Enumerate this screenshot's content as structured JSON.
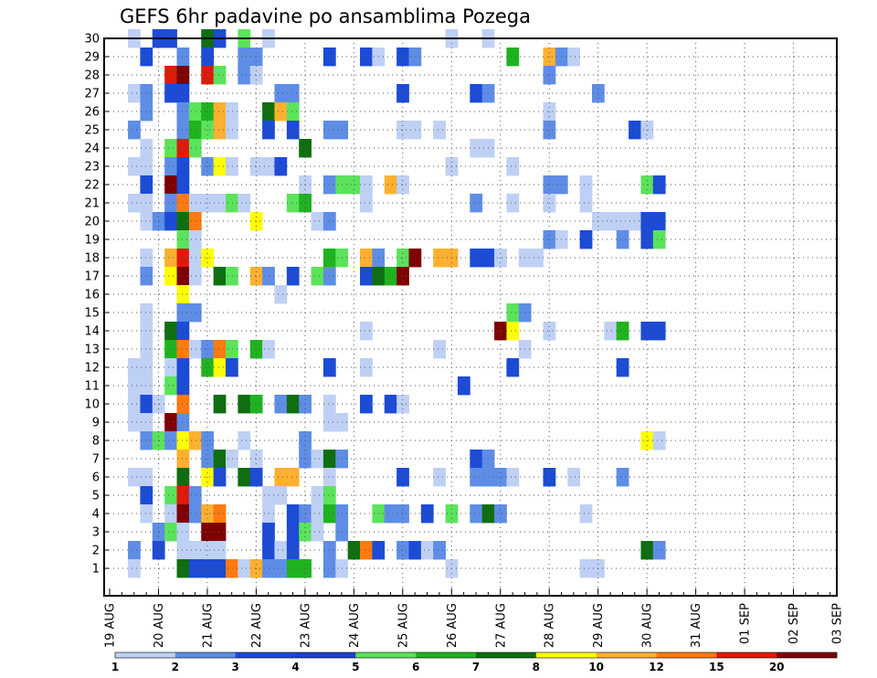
{
  "chart_data": {
    "type": "heatmap",
    "title": "GEFS 6hr padavine po ansamblima Pozega",
    "xlabel": "",
    "ylabel": "",
    "x_tick_labels": [
      "19 AUG",
      "20 AUG",
      "21 AUG",
      "22 AUG",
      "23 AUG",
      "24 AUG",
      "25 AUG",
      "26 AUG",
      "27 AUG",
      "28 AUG",
      "29 AUG",
      "30 AUG",
      "31 AUG",
      "01 SEP",
      "02 SEP",
      "03 SEP"
    ],
    "y_tick_labels": [
      "1",
      "2",
      "3",
      "4",
      "5",
      "6",
      "7",
      "8",
      "9",
      "10",
      "11",
      "12",
      "13",
      "14",
      "15",
      "16",
      "17",
      "18",
      "19",
      "20",
      "21",
      "22",
      "23",
      "24",
      "25",
      "26",
      "27",
      "28",
      "29",
      "30"
    ],
    "time_step_hours": 6,
    "grid": true,
    "colorbar": {
      "levels": [
        "1",
        "2",
        "3",
        "4",
        "5",
        "6",
        "7",
        "8",
        "10",
        "12",
        "15",
        "20"
      ],
      "colors": [
        "#bfd0f5",
        "#5e8de6",
        "#1c4bd6",
        "#1d40c8",
        "#5be35b",
        "#1fb31f",
        "#0f6e0f",
        "#ffff00",
        "#ffb030",
        "#ff7a10",
        "#e01a0a",
        "#7e0000"
      ]
    },
    "cells": [
      [
        30,
        2,
        1
      ],
      [
        30,
        4,
        3
      ],
      [
        30,
        5,
        3
      ],
      [
        30,
        8,
        7
      ],
      [
        30,
        9,
        3
      ],
      [
        30,
        11,
        5
      ],
      [
        30,
        13,
        1
      ],
      [
        30,
        28,
        1
      ],
      [
        30,
        31,
        1
      ],
      [
        29,
        3,
        3
      ],
      [
        29,
        6,
        2
      ],
      [
        29,
        8,
        3
      ],
      [
        29,
        11,
        2
      ],
      [
        29,
        12,
        2
      ],
      [
        29,
        18,
        3
      ],
      [
        29,
        21,
        3
      ],
      [
        29,
        22,
        1
      ],
      [
        29,
        24,
        3
      ],
      [
        29,
        25,
        2
      ],
      [
        29,
        33,
        6
      ],
      [
        29,
        36,
        10
      ],
      [
        29,
        37,
        2
      ],
      [
        29,
        38,
        1
      ],
      [
        28,
        5,
        15
      ],
      [
        28,
        6,
        20
      ],
      [
        28,
        8,
        15
      ],
      [
        28,
        9,
        5
      ],
      [
        28,
        11,
        2
      ],
      [
        28,
        12,
        1
      ],
      [
        28,
        36,
        2
      ],
      [
        27,
        2,
        1
      ],
      [
        27,
        3,
        2
      ],
      [
        27,
        5,
        3
      ],
      [
        27,
        6,
        3
      ],
      [
        27,
        14,
        2
      ],
      [
        27,
        15,
        2
      ],
      [
        27,
        24,
        3
      ],
      [
        27,
        30,
        3
      ],
      [
        27,
        31,
        2
      ],
      [
        27,
        40,
        2
      ],
      [
        26,
        3,
        2
      ],
      [
        26,
        6,
        2
      ],
      [
        26,
        7,
        5
      ],
      [
        26,
        8,
        6
      ],
      [
        26,
        9,
        10
      ],
      [
        26,
        10,
        1
      ],
      [
        26,
        13,
        7
      ],
      [
        26,
        14,
        10
      ],
      [
        26,
        15,
        5
      ],
      [
        26,
        36,
        1
      ],
      [
        25,
        2,
        2
      ],
      [
        25,
        6,
        2
      ],
      [
        25,
        7,
        6
      ],
      [
        25,
        8,
        5
      ],
      [
        25,
        9,
        10
      ],
      [
        25,
        10,
        1
      ],
      [
        25,
        13,
        3
      ],
      [
        25,
        15,
        3
      ],
      [
        25,
        18,
        2
      ],
      [
        25,
        19,
        2
      ],
      [
        25,
        24,
        1
      ],
      [
        25,
        25,
        1
      ],
      [
        25,
        27,
        1
      ],
      [
        25,
        36,
        2
      ],
      [
        25,
        43,
        3
      ],
      [
        25,
        44,
        1
      ],
      [
        24,
        3,
        1
      ],
      [
        24,
        5,
        5
      ],
      [
        24,
        6,
        15
      ],
      [
        24,
        7,
        5
      ],
      [
        24,
        16,
        7
      ],
      [
        24,
        30,
        1
      ],
      [
        24,
        31,
        1
      ],
      [
        23,
        2,
        1
      ],
      [
        23,
        3,
        1
      ],
      [
        23,
        5,
        2
      ],
      [
        23,
        6,
        3
      ],
      [
        23,
        8,
        2
      ],
      [
        23,
        9,
        8
      ],
      [
        23,
        10,
        1
      ],
      [
        23,
        12,
        1
      ],
      [
        23,
        13,
        1
      ],
      [
        23,
        14,
        3
      ],
      [
        23,
        28,
        1
      ],
      [
        23,
        33,
        1
      ],
      [
        22,
        3,
        3
      ],
      [
        22,
        5,
        20
      ],
      [
        22,
        6,
        3
      ],
      [
        22,
        16,
        1
      ],
      [
        22,
        18,
        2
      ],
      [
        22,
        19,
        5
      ],
      [
        22,
        20,
        5
      ],
      [
        22,
        21,
        1
      ],
      [
        22,
        23,
        10
      ],
      [
        22,
        24,
        1
      ],
      [
        22,
        36,
        2
      ],
      [
        22,
        37,
        2
      ],
      [
        22,
        39,
        1
      ],
      [
        22,
        44,
        5
      ],
      [
        22,
        45,
        3
      ],
      [
        21,
        2,
        1
      ],
      [
        21,
        3,
        1
      ],
      [
        21,
        5,
        2
      ],
      [
        21,
        6,
        12
      ],
      [
        21,
        7,
        1
      ],
      [
        21,
        8,
        1
      ],
      [
        21,
        9,
        1
      ],
      [
        21,
        10,
        5
      ],
      [
        21,
        11,
        1
      ],
      [
        21,
        15,
        5
      ],
      [
        21,
        16,
        6
      ],
      [
        21,
        21,
        1
      ],
      [
        21,
        30,
        2
      ],
      [
        21,
        33,
        1
      ],
      [
        21,
        36,
        1
      ],
      [
        21,
        39,
        1
      ],
      [
        20,
        3,
        1
      ],
      [
        20,
        4,
        2
      ],
      [
        20,
        5,
        3
      ],
      [
        20,
        6,
        7
      ],
      [
        20,
        7,
        12
      ],
      [
        20,
        12,
        8
      ],
      [
        20,
        17,
        1
      ],
      [
        20,
        18,
        2
      ],
      [
        20,
        40,
        1
      ],
      [
        20,
        41,
        1
      ],
      [
        20,
        42,
        1
      ],
      [
        20,
        43,
        1
      ],
      [
        20,
        44,
        3
      ],
      [
        20,
        45,
        3
      ],
      [
        19,
        6,
        5
      ],
      [
        19,
        7,
        1
      ],
      [
        19,
        36,
        2
      ],
      [
        19,
        37,
        1
      ],
      [
        19,
        39,
        3
      ],
      [
        19,
        42,
        2
      ],
      [
        19,
        44,
        3
      ],
      [
        19,
        45,
        5
      ],
      [
        18,
        3,
        1
      ],
      [
        18,
        5,
        10
      ],
      [
        18,
        6,
        15
      ],
      [
        18,
        7,
        1
      ],
      [
        18,
        8,
        8
      ],
      [
        18,
        18,
        6
      ],
      [
        18,
        19,
        5
      ],
      [
        18,
        21,
        10
      ],
      [
        18,
        22,
        2
      ],
      [
        18,
        24,
        5
      ],
      [
        18,
        25,
        20
      ],
      [
        18,
        27,
        10
      ],
      [
        18,
        28,
        10
      ],
      [
        18,
        30,
        3
      ],
      [
        18,
        31,
        3
      ],
      [
        18,
        32,
        1
      ],
      [
        18,
        34,
        1
      ],
      [
        18,
        35,
        1
      ],
      [
        17,
        3,
        2
      ],
      [
        17,
        5,
        8
      ],
      [
        17,
        6,
        20
      ],
      [
        17,
        7,
        1
      ],
      [
        17,
        9,
        7
      ],
      [
        17,
        10,
        5
      ],
      [
        17,
        12,
        10
      ],
      [
        17,
        13,
        2
      ],
      [
        17,
        15,
        3
      ],
      [
        17,
        17,
        5
      ],
      [
        17,
        18,
        2
      ],
      [
        17,
        21,
        3
      ],
      [
        17,
        22,
        7
      ],
      [
        17,
        23,
        6
      ],
      [
        17,
        24,
        20
      ],
      [
        16,
        6,
        8
      ],
      [
        16,
        14,
        1
      ],
      [
        15,
        3,
        1
      ],
      [
        15,
        6,
        2
      ],
      [
        15,
        7,
        2
      ],
      [
        15,
        33,
        5
      ],
      [
        15,
        34,
        2
      ],
      [
        14,
        3,
        1
      ],
      [
        14,
        5,
        7
      ],
      [
        14,
        6,
        3
      ],
      [
        14,
        21,
        1
      ],
      [
        14,
        32,
        20
      ],
      [
        14,
        33,
        8
      ],
      [
        14,
        36,
        1
      ],
      [
        14,
        41,
        1
      ],
      [
        14,
        42,
        6
      ],
      [
        14,
        44,
        3
      ],
      [
        14,
        45,
        3
      ],
      [
        13,
        3,
        1
      ],
      [
        13,
        5,
        6
      ],
      [
        13,
        6,
        12
      ],
      [
        13,
        7,
        1
      ],
      [
        13,
        8,
        2
      ],
      [
        13,
        9,
        12
      ],
      [
        13,
        10,
        5
      ],
      [
        13,
        12,
        6
      ],
      [
        13,
        13,
        1
      ],
      [
        13,
        27,
        1
      ],
      [
        13,
        34,
        1
      ],
      [
        12,
        2,
        1
      ],
      [
        12,
        3,
        1
      ],
      [
        12,
        5,
        1
      ],
      [
        12,
        6,
        3
      ],
      [
        12,
        8,
        6
      ],
      [
        12,
        9,
        8
      ],
      [
        12,
        10,
        3
      ],
      [
        12,
        18,
        3
      ],
      [
        12,
        21,
        1
      ],
      [
        12,
        33,
        3
      ],
      [
        12,
        42,
        3
      ],
      [
        11,
        2,
        1
      ],
      [
        11,
        3,
        1
      ],
      [
        11,
        5,
        5
      ],
      [
        11,
        6,
        3
      ],
      [
        11,
        29,
        3
      ],
      [
        10,
        2,
        1
      ],
      [
        10,
        3,
        3
      ],
      [
        10,
        4,
        1
      ],
      [
        10,
        6,
        12
      ],
      [
        10,
        9,
        7
      ],
      [
        10,
        11,
        7
      ],
      [
        10,
        12,
        6
      ],
      [
        10,
        14,
        2
      ],
      [
        10,
        15,
        7
      ],
      [
        10,
        16,
        2
      ],
      [
        10,
        18,
        1
      ],
      [
        10,
        21,
        3
      ],
      [
        10,
        23,
        3
      ],
      [
        10,
        24,
        1
      ],
      [
        9,
        2,
        1
      ],
      [
        9,
        3,
        1
      ],
      [
        9,
        5,
        20
      ],
      [
        9,
        6,
        2
      ],
      [
        9,
        18,
        1
      ],
      [
        9,
        19,
        1
      ],
      [
        8,
        3,
        2
      ],
      [
        8,
        4,
        5
      ],
      [
        8,
        5,
        2
      ],
      [
        8,
        6,
        8
      ],
      [
        8,
        7,
        10
      ],
      [
        8,
        8,
        2
      ],
      [
        8,
        11,
        1
      ],
      [
        8,
        16,
        2
      ],
      [
        8,
        44,
        8
      ],
      [
        8,
        45,
        1
      ],
      [
        7,
        6,
        10
      ],
      [
        7,
        8,
        2
      ],
      [
        7,
        9,
        7
      ],
      [
        7,
        10,
        1
      ],
      [
        7,
        12,
        1
      ],
      [
        7,
        16,
        2
      ],
      [
        7,
        17,
        1
      ],
      [
        7,
        18,
        7
      ],
      [
        7,
        19,
        2
      ],
      [
        7,
        30,
        3
      ],
      [
        7,
        31,
        2
      ],
      [
        6,
        2,
        1
      ],
      [
        6,
        3,
        1
      ],
      [
        6,
        6,
        7
      ],
      [
        6,
        8,
        8
      ],
      [
        6,
        9,
        3
      ],
      [
        6,
        11,
        7
      ],
      [
        6,
        12,
        3
      ],
      [
        6,
        14,
        10
      ],
      [
        6,
        15,
        10
      ],
      [
        6,
        18,
        1
      ],
      [
        6,
        24,
        3
      ],
      [
        6,
        27,
        1
      ],
      [
        6,
        30,
        2
      ],
      [
        6,
        31,
        2
      ],
      [
        6,
        32,
        2
      ],
      [
        6,
        33,
        1
      ],
      [
        6,
        36,
        3
      ],
      [
        6,
        38,
        1
      ],
      [
        6,
        42,
        2
      ],
      [
        5,
        3,
        3
      ],
      [
        5,
        5,
        5
      ],
      [
        5,
        6,
        15
      ],
      [
        5,
        7,
        2
      ],
      [
        5,
        13,
        1
      ],
      [
        5,
        14,
        1
      ],
      [
        5,
        17,
        1
      ],
      [
        5,
        18,
        5
      ],
      [
        4,
        3,
        1
      ],
      [
        4,
        5,
        1
      ],
      [
        4,
        6,
        20
      ],
      [
        4,
        7,
        2
      ],
      [
        4,
        8,
        10
      ],
      [
        4,
        9,
        12
      ],
      [
        4,
        13,
        1
      ],
      [
        4,
        15,
        3
      ],
      [
        4,
        16,
        2
      ],
      [
        4,
        17,
        1
      ],
      [
        4,
        18,
        6
      ],
      [
        4,
        19,
        2
      ],
      [
        4,
        22,
        5
      ],
      [
        4,
        23,
        2
      ],
      [
        4,
        24,
        2
      ],
      [
        4,
        26,
        3
      ],
      [
        4,
        28,
        5
      ],
      [
        4,
        30,
        2
      ],
      [
        4,
        31,
        7
      ],
      [
        4,
        32,
        2
      ],
      [
        4,
        39,
        1
      ],
      [
        3,
        4,
        2
      ],
      [
        3,
        5,
        5
      ],
      [
        3,
        6,
        1
      ],
      [
        3,
        8,
        20
      ],
      [
        3,
        9,
        20
      ],
      [
        3,
        13,
        3
      ],
      [
        3,
        15,
        3
      ],
      [
        3,
        16,
        5
      ],
      [
        3,
        17,
        1
      ],
      [
        3,
        19,
        2
      ],
      [
        2,
        2,
        2
      ],
      [
        2,
        4,
        3
      ],
      [
        2,
        6,
        1
      ],
      [
        2,
        7,
        1
      ],
      [
        2,
        8,
        1
      ],
      [
        2,
        9,
        1
      ],
      [
        2,
        13,
        3
      ],
      [
        2,
        14,
        1
      ],
      [
        2,
        15,
        3
      ],
      [
        2,
        18,
        2
      ],
      [
        2,
        20,
        7
      ],
      [
        2,
        21,
        12
      ],
      [
        2,
        22,
        3
      ],
      [
        2,
        24,
        2
      ],
      [
        2,
        25,
        3
      ],
      [
        2,
        26,
        1
      ],
      [
        2,
        27,
        2
      ],
      [
        2,
        44,
        7
      ],
      [
        2,
        45,
        2
      ],
      [
        1,
        2,
        1
      ],
      [
        1,
        6,
        7
      ],
      [
        1,
        7,
        3
      ],
      [
        1,
        8,
        3
      ],
      [
        1,
        9,
        3
      ],
      [
        1,
        10,
        12
      ],
      [
        1,
        11,
        1
      ],
      [
        1,
        12,
        10
      ],
      [
        1,
        13,
        2
      ],
      [
        1,
        14,
        2
      ],
      [
        1,
        15,
        6
      ],
      [
        1,
        16,
        6
      ],
      [
        1,
        18,
        2
      ],
      [
        1,
        19,
        1
      ],
      [
        1,
        28,
        1
      ],
      [
        1,
        39,
        1
      ],
      [
        1,
        40,
        1
      ]
    ]
  }
}
